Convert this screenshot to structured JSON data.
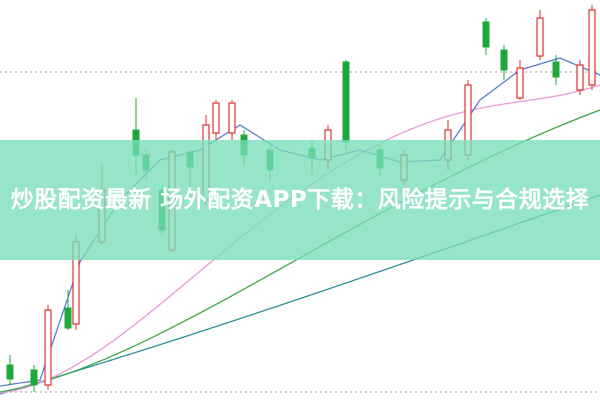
{
  "header": {
    "title": "炒股配资最新 场外配资APP下载：风险提示与合规选择"
  }
}
